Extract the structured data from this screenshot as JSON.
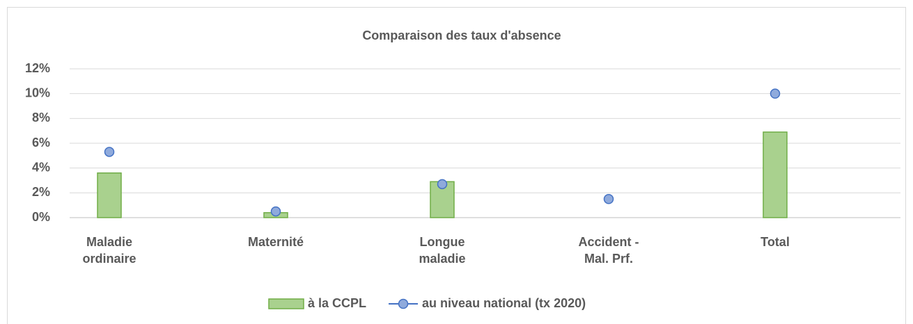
{
  "chart_data": {
    "type": "bar",
    "title": "Comparaison des taux d'absence",
    "categories": [
      "Maladie\nordinaire",
      "Maternité",
      "Longue\nmaladie",
      "Accident -\nMal. Prf.",
      "Total"
    ],
    "series": [
      {
        "name": "à la CCPL",
        "type": "bar",
        "color": "#a9d18e",
        "edge_color": "#70ad47",
        "values": [
          3.6,
          0.4,
          2.9,
          null,
          6.9
        ]
      },
      {
        "name": "au niveau national (tx 2020)",
        "type": "line",
        "line_visible": false,
        "color": "#8faadc",
        "edge_color": "#4472c4",
        "values": [
          5.3,
          0.5,
          2.7,
          1.5,
          10
        ]
      }
    ],
    "ylim": [
      0,
      12
    ],
    "yticks": [
      {
        "value": 0,
        "label": "0%"
      },
      {
        "value": 2,
        "label": "2%"
      },
      {
        "value": 4,
        "label": "4%"
      },
      {
        "value": 6,
        "label": "6%"
      },
      {
        "value": 8,
        "label": "8%"
      },
      {
        "value": 10,
        "label": "10%"
      },
      {
        "value": 12,
        "label": "12%"
      }
    ],
    "grid": true,
    "legend": "bottom"
  }
}
